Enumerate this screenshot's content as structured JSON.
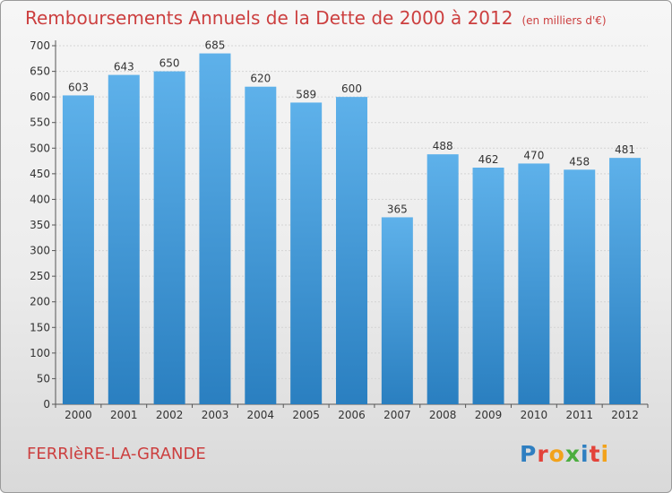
{
  "header": {
    "title": "Remboursements Annuels de la Dette de 2000 à 2012",
    "unit": "(en milliers d'€)"
  },
  "footer": {
    "commune": "FERRIèRE-LA-GRANDE",
    "logo_letters": [
      {
        "char": "P",
        "color": "#2f7fc1"
      },
      {
        "char": "r",
        "color": "#e3433a"
      },
      {
        "char": "o",
        "color": "#f2a21b"
      },
      {
        "char": "x",
        "color": "#4bad3f"
      },
      {
        "char": "i",
        "color": "#2f7fc1"
      },
      {
        "char": "t",
        "color": "#e3433a"
      },
      {
        "char": "i",
        "color": "#f2a21b"
      }
    ]
  },
  "chart_data": {
    "type": "bar",
    "categories": [
      "2000",
      "2001",
      "2002",
      "2003",
      "2004",
      "2005",
      "2006",
      "2007",
      "2008",
      "2009",
      "2010",
      "2011",
      "2012"
    ],
    "values": [
      603,
      643,
      650,
      685,
      620,
      589,
      600,
      365,
      488,
      462,
      470,
      458,
      481
    ],
    "ylim": [
      0,
      700
    ],
    "yticks": [
      0,
      50,
      100,
      150,
      200,
      250,
      300,
      350,
      400,
      450,
      500,
      550,
      600,
      650,
      700
    ],
    "grid": true,
    "bar_color_top": "#5eb1ea",
    "bar_color_bottom": "#2a7fc0"
  }
}
